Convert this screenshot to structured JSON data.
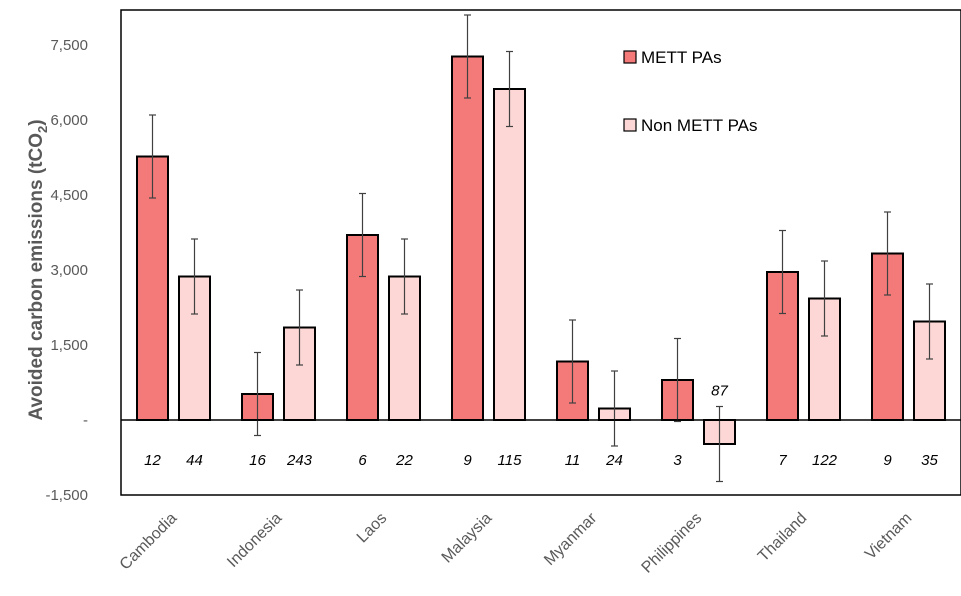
{
  "colors": {
    "mett": "#f47a7a",
    "non_mett": "#fcd7d5",
    "bar_stroke": "#000000",
    "error_bar": "#404040",
    "axis": "#000000"
  },
  "chart_data": {
    "type": "bar",
    "ylabel": "Avoided carbon emissions (tCO",
    "ylabel_sub": "2",
    "ylabel_close": ")",
    "ylim": [
      -1500,
      8200
    ],
    "ticks": [
      {
        "value": -1500,
        "label": "-1,500"
      },
      {
        "value": 0,
        "label": "-"
      },
      {
        "value": 1500,
        "label": "1,500"
      },
      {
        "value": 3000,
        "label": "3,000"
      },
      {
        "value": 4500,
        "label": "4,500"
      },
      {
        "value": 6000,
        "label": "6,000"
      },
      {
        "value": 7500,
        "label": "7,500"
      }
    ],
    "grid": false,
    "legend_position": "top-right",
    "categories": [
      "Cambodia",
      "Indonesia",
      "Laos",
      "Malaysia",
      "Myanmar",
      "Philippines",
      "Thailand",
      "Vietnam"
    ],
    "series": [
      {
        "name": "METT PAs",
        "values": [
          5270,
          520,
          3700,
          7270,
          1170,
          800,
          2960,
          3330
        ],
        "errors": [
          830,
          830,
          830,
          830,
          830,
          830,
          830,
          830
        ],
        "counts": [
          "12",
          "16",
          "6",
          "9",
          "11",
          "3",
          "7",
          "9"
        ]
      },
      {
        "name": "Non METT PAs",
        "values": [
          2870,
          1850,
          2870,
          6620,
          230,
          -480,
          2430,
          1970
        ],
        "errors": [
          750,
          750,
          750,
          750,
          750,
          750,
          750,
          750
        ],
        "counts": [
          "44",
          "243",
          "22",
          "115",
          "24",
          "87",
          "122",
          "35"
        ]
      }
    ]
  }
}
